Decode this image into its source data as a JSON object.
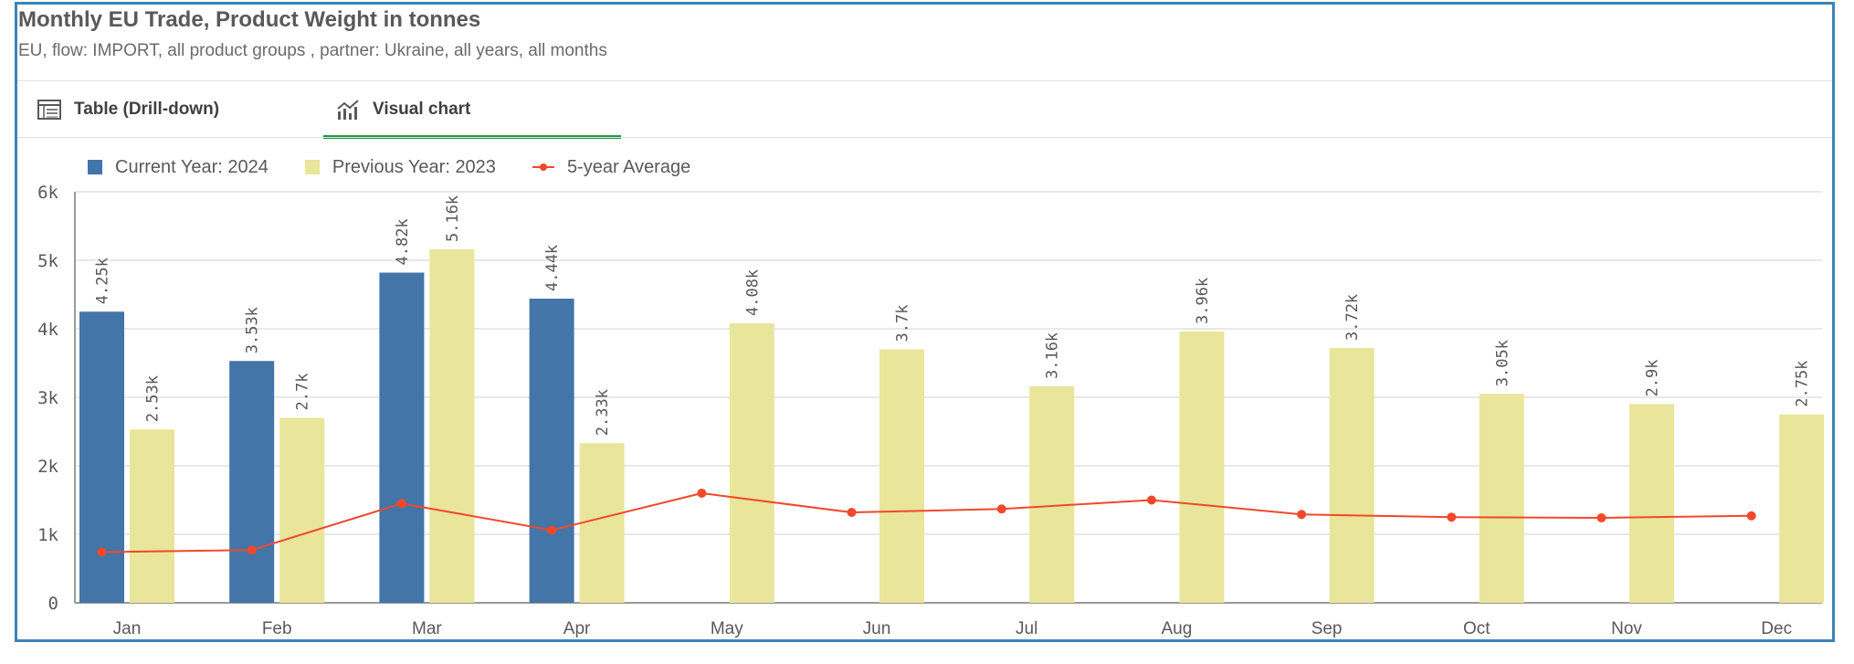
{
  "header": {
    "title": "Monthly EU Trade, Product Weight in tonnes",
    "subtitle": "EU, flow: IMPORT, all product groups , partner: Ukraine, all years, all months"
  },
  "tabs": [
    {
      "label": "Table (Drill-down)",
      "icon": "table-icon",
      "active": false
    },
    {
      "label": "Visual chart",
      "icon": "line-chart-icon",
      "active": true
    }
  ],
  "colors": {
    "current": "#4375a9",
    "previous": "#e9e59a",
    "average": "#f0492a",
    "active_tab": "#1f9a47",
    "frame": "#3c84b8"
  },
  "chart_data": {
    "type": "bar",
    "categories": [
      "Jan",
      "Feb",
      "Mar",
      "Apr",
      "May",
      "Jun",
      "Jul",
      "Aug",
      "Sep",
      "Oct",
      "Nov",
      "Dec"
    ],
    "series": [
      {
        "name": "Current Year: 2024",
        "kind": "bar",
        "values": [
          4250,
          3530,
          4820,
          4440,
          null,
          null,
          null,
          null,
          null,
          null,
          null,
          null
        ],
        "labels": [
          "4.25k",
          "3.53k",
          "4.82k",
          "4.44k",
          "",
          "",
          "",
          "",
          "",
          "",
          "",
          ""
        ]
      },
      {
        "name": "Previous Year: 2023",
        "kind": "bar",
        "values": [
          2530,
          2700,
          5160,
          2330,
          4080,
          3700,
          3160,
          3960,
          3720,
          3050,
          2900,
          2750
        ],
        "labels": [
          "2.53k",
          "2.7k",
          "5.16k",
          "2.33k",
          "4.08k",
          "3.7k",
          "3.16k",
          "3.96k",
          "3.72k",
          "3.05k",
          "2.9k",
          "2.75k"
        ]
      },
      {
        "name": "5-year Average",
        "kind": "line",
        "values": [
          740,
          770,
          1450,
          1060,
          1600,
          1320,
          1370,
          1500,
          1290,
          1250,
          1240,
          1270
        ]
      }
    ],
    "ylim": [
      0,
      6000
    ],
    "yticks": [
      0,
      1000,
      2000,
      3000,
      4000,
      5000,
      6000
    ],
    "ytick_labels": [
      "0",
      "1k",
      "2k",
      "3k",
      "4k",
      "5k",
      "6k"
    ],
    "legend_position": "top-left",
    "grid": true
  }
}
